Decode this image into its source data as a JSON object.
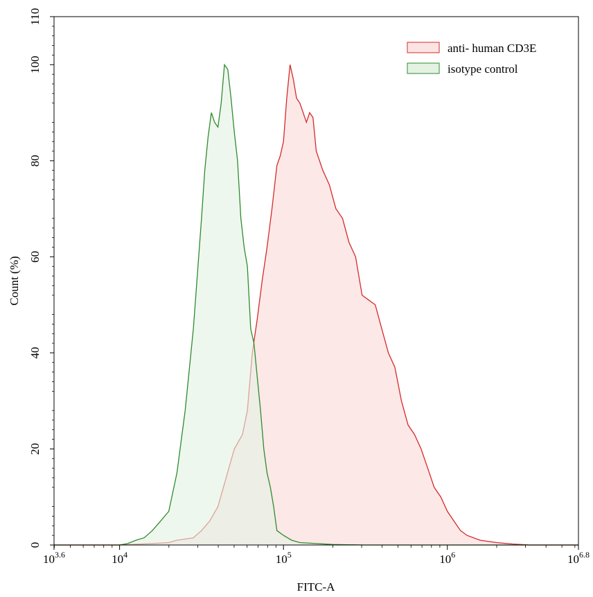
{
  "chart_data": {
    "type": "area",
    "xlabel": "FITC-A",
    "ylabel": "Count (%)",
    "x_scale": "log10",
    "xlim": [
      3.6,
      6.8
    ],
    "ylim": [
      0,
      110
    ],
    "x_ticks": [
      {
        "exp": 3.6,
        "base": "10",
        "sup": "3.6"
      },
      {
        "exp": 4,
        "base": "10",
        "sup": "4"
      },
      {
        "exp": 5,
        "base": "10",
        "sup": "5"
      },
      {
        "exp": 6,
        "base": "10",
        "sup": "6"
      },
      {
        "exp": 6.8,
        "base": "10",
        "sup": "6.8"
      }
    ],
    "y_ticks": [
      0,
      20,
      40,
      60,
      80,
      100,
      110
    ],
    "grid": false,
    "legend_position": "top-right",
    "series": [
      {
        "name": "anti- human CD3E",
        "stroke": "#d42a2a",
        "fill": "#fde4e4",
        "points": [
          [
            3.6,
            0
          ],
          [
            4.0,
            0
          ],
          [
            4.2,
            0.3
          ],
          [
            4.3,
            0.5
          ],
          [
            4.35,
            1
          ],
          [
            4.45,
            1.5
          ],
          [
            4.5,
            3
          ],
          [
            4.55,
            5
          ],
          [
            4.6,
            8
          ],
          [
            4.65,
            14
          ],
          [
            4.7,
            20
          ],
          [
            4.75,
            23
          ],
          [
            4.78,
            28
          ],
          [
            4.81,
            40
          ],
          [
            4.84,
            47
          ],
          [
            4.87,
            55
          ],
          [
            4.9,
            62
          ],
          [
            4.93,
            70
          ],
          [
            4.96,
            79
          ],
          [
            4.98,
            81
          ],
          [
            5.0,
            84
          ],
          [
            5.02,
            93
          ],
          [
            5.04,
            100
          ],
          [
            5.06,
            97
          ],
          [
            5.08,
            93
          ],
          [
            5.1,
            92
          ],
          [
            5.12,
            90
          ],
          [
            5.14,
            88
          ],
          [
            5.16,
            90
          ],
          [
            5.18,
            89
          ],
          [
            5.2,
            82
          ],
          [
            5.24,
            78
          ],
          [
            5.28,
            75
          ],
          [
            5.32,
            70
          ],
          [
            5.36,
            68
          ],
          [
            5.4,
            63
          ],
          [
            5.44,
            60
          ],
          [
            5.48,
            52
          ],
          [
            5.52,
            51
          ],
          [
            5.56,
            50
          ],
          [
            5.6,
            45
          ],
          [
            5.64,
            40
          ],
          [
            5.68,
            37
          ],
          [
            5.72,
            30
          ],
          [
            5.76,
            25
          ],
          [
            5.8,
            23
          ],
          [
            5.84,
            20
          ],
          [
            5.88,
            16
          ],
          [
            5.92,
            12
          ],
          [
            5.96,
            10
          ],
          [
            6.0,
            7
          ],
          [
            6.04,
            5
          ],
          [
            6.08,
            3
          ],
          [
            6.12,
            2
          ],
          [
            6.2,
            1
          ],
          [
            6.3,
            0.5
          ],
          [
            6.4,
            0.2
          ],
          [
            6.5,
            0
          ],
          [
            6.8,
            0
          ]
        ]
      },
      {
        "name": "isotype control",
        "stroke": "#2e8b2e",
        "fill": "#e3f2e3",
        "points": [
          [
            3.6,
            0
          ],
          [
            4.0,
            0
          ],
          [
            4.05,
            0.3
          ],
          [
            4.1,
            1
          ],
          [
            4.15,
            1.5
          ],
          [
            4.2,
            3
          ],
          [
            4.25,
            5
          ],
          [
            4.3,
            7
          ],
          [
            4.35,
            15
          ],
          [
            4.4,
            28
          ],
          [
            4.45,
            45
          ],
          [
            4.5,
            68
          ],
          [
            4.52,
            78
          ],
          [
            4.54,
            85
          ],
          [
            4.56,
            90
          ],
          [
            4.58,
            88
          ],
          [
            4.6,
            87
          ],
          [
            4.62,
            92
          ],
          [
            4.64,
            100
          ],
          [
            4.66,
            99
          ],
          [
            4.68,
            93
          ],
          [
            4.7,
            86
          ],
          [
            4.72,
            80
          ],
          [
            4.74,
            68
          ],
          [
            4.76,
            62
          ],
          [
            4.78,
            58
          ],
          [
            4.8,
            45
          ],
          [
            4.82,
            42
          ],
          [
            4.84,
            35
          ],
          [
            4.86,
            28
          ],
          [
            4.88,
            20
          ],
          [
            4.9,
            15
          ],
          [
            4.92,
            12
          ],
          [
            4.94,
            8
          ],
          [
            4.96,
            3
          ],
          [
            5.0,
            2
          ],
          [
            5.05,
            1
          ],
          [
            5.1,
            0.5
          ],
          [
            5.2,
            0.3
          ],
          [
            5.3,
            0.1
          ],
          [
            5.5,
            0
          ],
          [
            6.8,
            0
          ]
        ]
      }
    ]
  }
}
